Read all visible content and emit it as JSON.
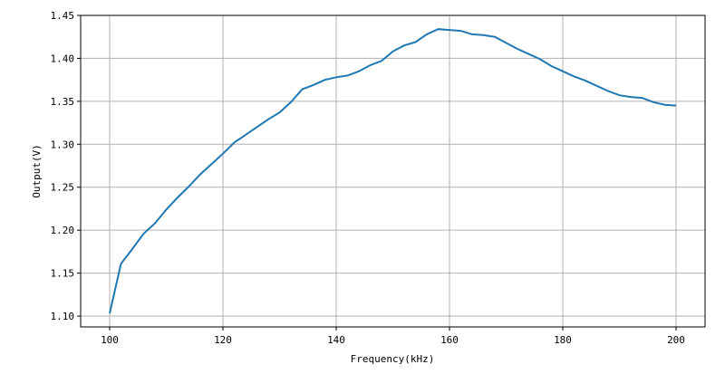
{
  "chart_data": {
    "type": "line",
    "title": "",
    "xlabel": "Frequency(kHz)",
    "ylabel": "Output(V)",
    "xlim": [
      94.88,
      205.12
    ],
    "ylim": [
      1.0874,
      1.45
    ],
    "xticks": [
      100,
      120,
      140,
      160,
      180,
      200
    ],
    "yticks": [
      1.1,
      1.15,
      1.2,
      1.25,
      1.3,
      1.35,
      1.4,
      1.45
    ],
    "grid": true,
    "line_color": "#1f77b4",
    "grid_color": "#b0b0b0",
    "x": [
      100,
      102,
      104,
      106,
      108,
      110,
      112,
      114,
      116,
      118,
      120,
      122,
      124,
      126,
      128,
      130,
      132,
      134,
      136,
      138,
      140,
      142,
      144,
      146,
      148,
      150,
      152,
      154,
      156,
      158,
      160,
      162,
      164,
      166,
      168,
      170,
      172,
      174,
      176,
      178,
      180,
      182,
      184,
      186,
      188,
      190,
      192,
      194,
      196,
      198,
      200
    ],
    "y": [
      1.103,
      1.161,
      1.178,
      1.196,
      1.208,
      1.224,
      1.238,
      1.251,
      1.265,
      1.277,
      1.289,
      1.302,
      1.311,
      1.32,
      1.329,
      1.337,
      1.349,
      1.364,
      1.369,
      1.375,
      1.378,
      1.38,
      1.385,
      1.392,
      1.397,
      1.408,
      1.415,
      1.419,
      1.428,
      1.434,
      1.433,
      1.432,
      1.428,
      1.427,
      1.425,
      1.418,
      1.411,
      1.405,
      1.399,
      1.391,
      1.385,
      1.379,
      1.374,
      1.368,
      1.362,
      1.357,
      1.355,
      1.354,
      1.349,
      1.346,
      1.345
    ]
  }
}
